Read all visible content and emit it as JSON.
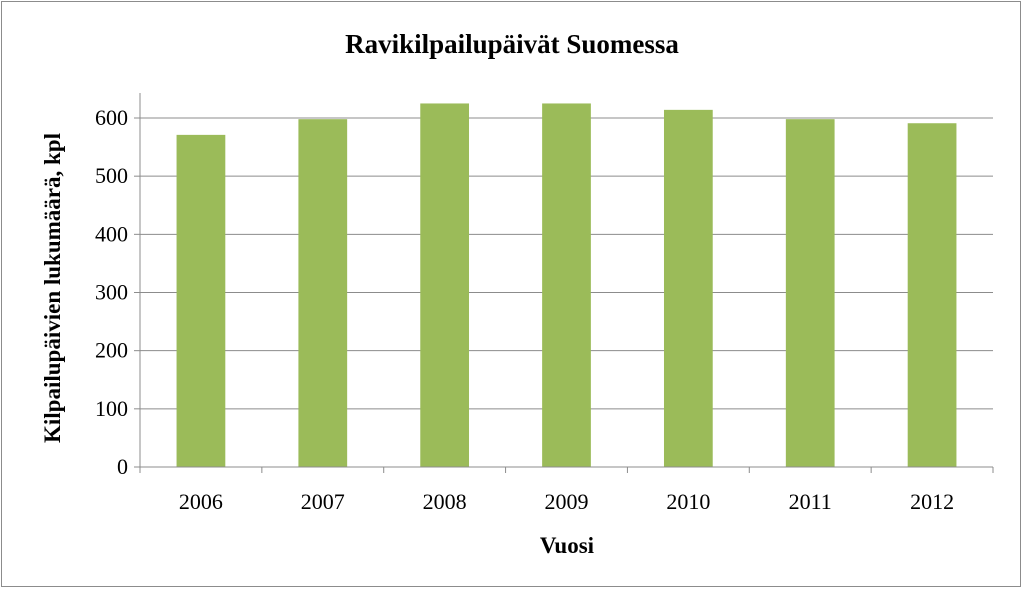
{
  "chart_data": {
    "type": "bar",
    "title": "Ravikilpailupäivät Suomessa",
    "xlabel": "Vuosi",
    "ylabel": "Kilpailupäivien lukumäärä, kpl",
    "categories": [
      "2006",
      "2007",
      "2008",
      "2009",
      "2010",
      "2011",
      "2012"
    ],
    "values": [
      571,
      598,
      625,
      625,
      614,
      598,
      591
    ],
    "ylim": [
      0,
      600
    ],
    "yticks": [
      0,
      100,
      200,
      300,
      400,
      500,
      600
    ],
    "grid": true,
    "legend": "none",
    "bar_color": "#9bbb59"
  }
}
